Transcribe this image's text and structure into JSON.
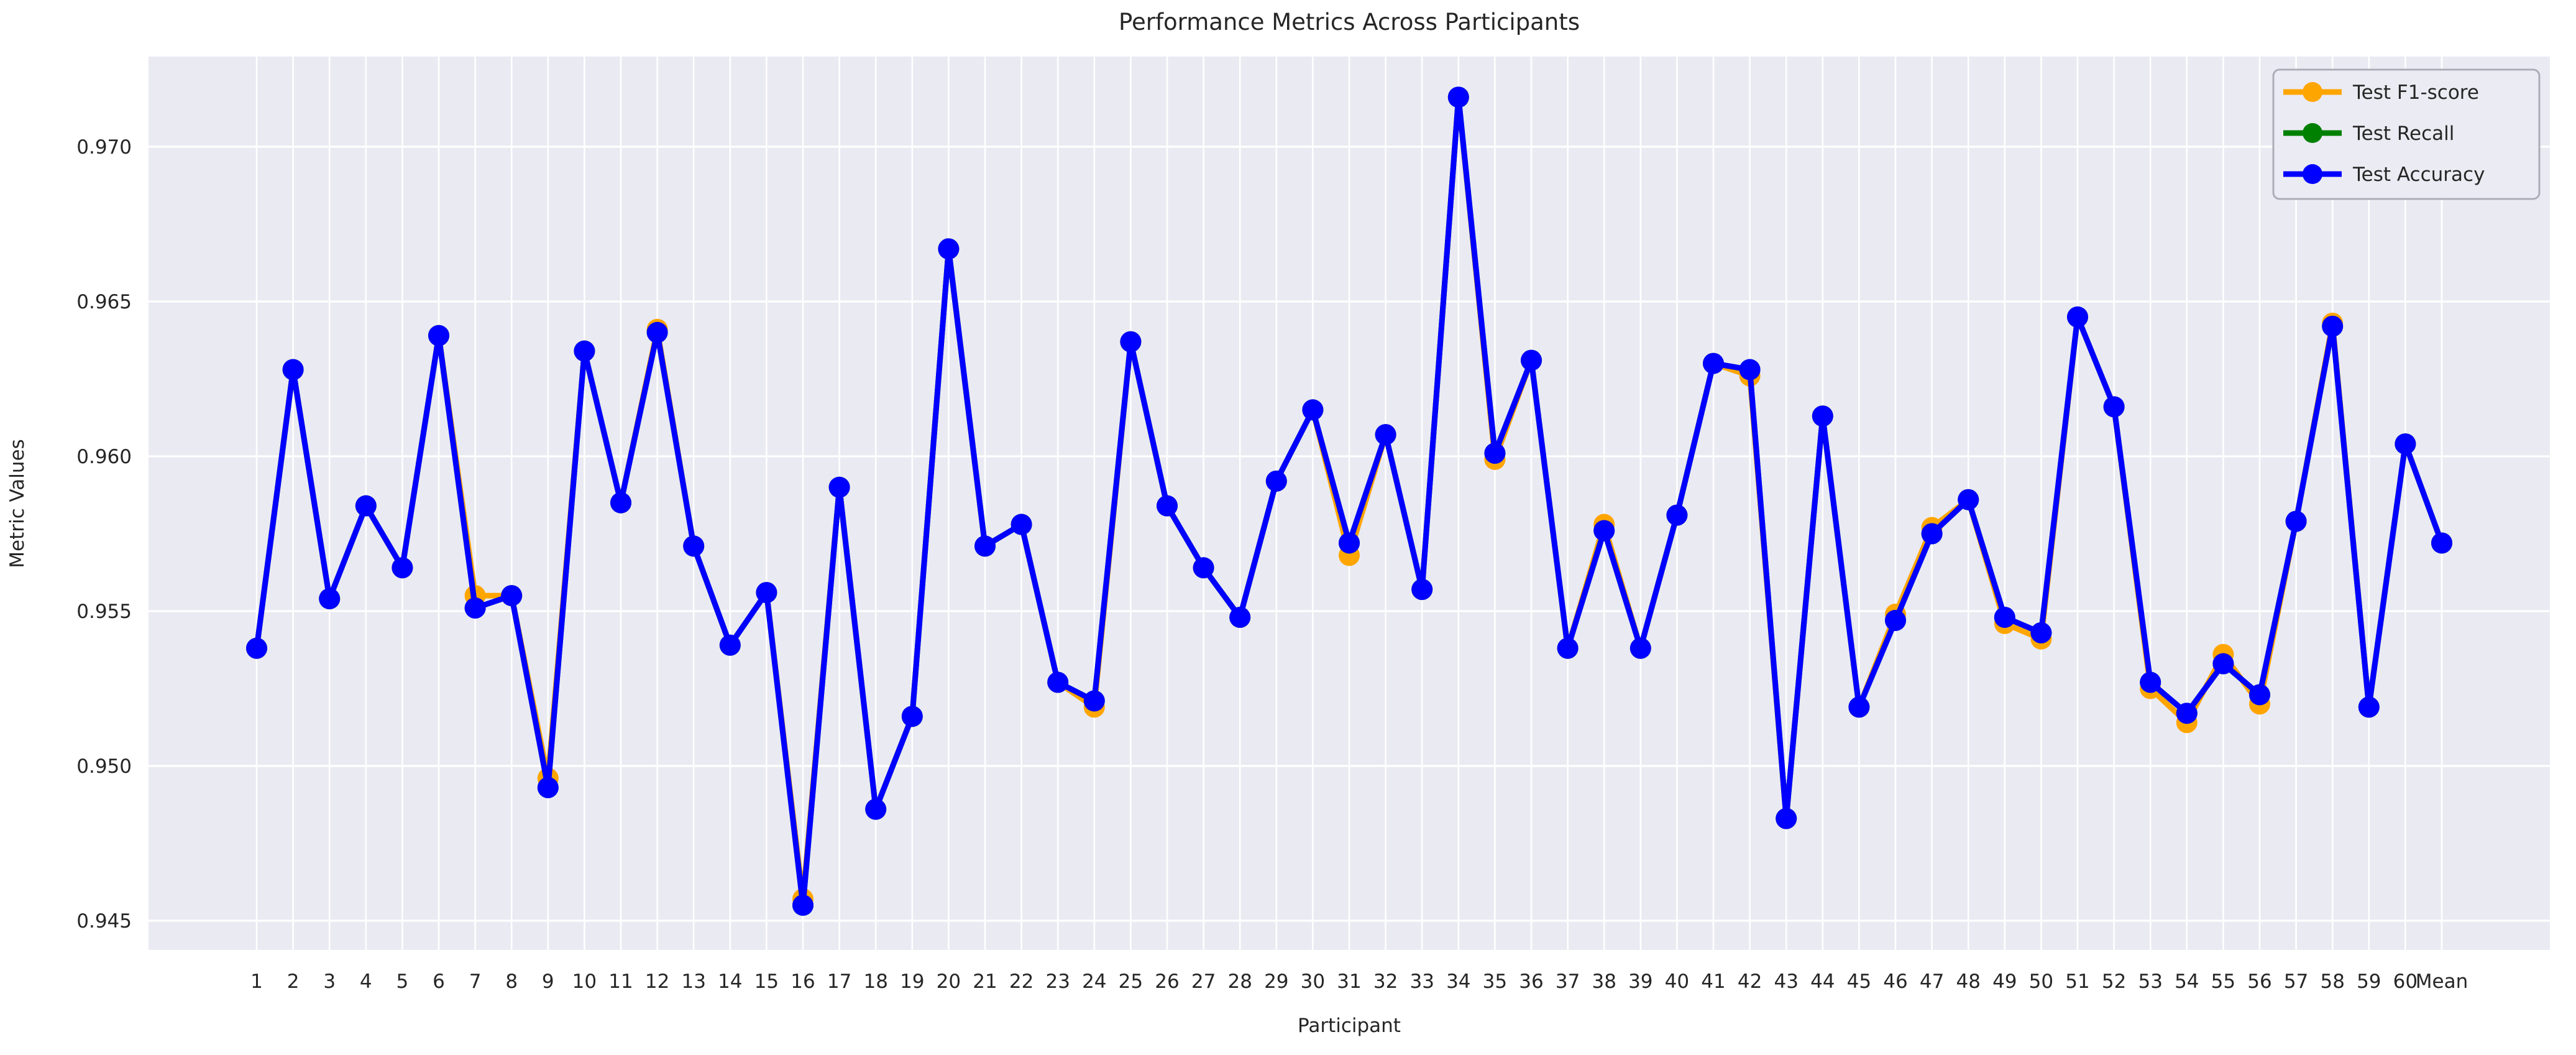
{
  "figure": {
    "title": "Performance Metrics Across Participants",
    "background_color": "#ffffff",
    "plot_background_color": "#eaeaf2",
    "grid_color": "#ffffff",
    "text_color": "#262626",
    "legend_border_color": "#adadb8",
    "legend_fill_color": "#ebebf3"
  },
  "chart_data": {
    "type": "line",
    "title": "Performance Metrics Across Participants",
    "xlabel": "Participant",
    "ylabel": "Metric Values",
    "x_tick_labels": [
      "1",
      "2",
      "3",
      "4",
      "5",
      "6",
      "7",
      "8",
      "9",
      "10",
      "11",
      "12",
      "13",
      "14",
      "15",
      "16",
      "17",
      "18",
      "19",
      "20",
      "21",
      "22",
      "23",
      "24",
      "25",
      "26",
      "27",
      "28",
      "29",
      "30",
      "31",
      "32",
      "33",
      "34",
      "35",
      "36",
      "37",
      "38",
      "39",
      "40",
      "41",
      "42",
      "43",
      "44",
      "45",
      "46",
      "47",
      "48",
      "49",
      "50",
      "51",
      "52",
      "53",
      "54",
      "55",
      "56",
      "57",
      "58",
      "59",
      "60",
      "Mean"
    ],
    "y_ticks": [
      0.945,
      0.95,
      0.955,
      0.96,
      0.965,
      0.97
    ],
    "ylim": [
      0.9441,
      0.9729
    ],
    "grid": true,
    "legend_position": "upper right",
    "series": [
      {
        "name": "Test F1-score",
        "color": "#FFA500",
        "values": [
          0.9538,
          0.9628,
          0.9554,
          0.9584,
          0.9564,
          0.9639,
          0.9555,
          0.9555,
          0.9496,
          0.9634,
          0.9585,
          0.9641,
          0.9571,
          0.9539,
          0.9556,
          0.9457,
          0.959,
          0.9486,
          0.9516,
          0.9667,
          0.9571,
          0.9578,
          0.9527,
          0.9519,
          0.9637,
          0.9584,
          0.9564,
          0.9548,
          0.9592,
          0.9615,
          0.9568,
          0.9607,
          0.9557,
          0.9716,
          0.9599,
          0.9631,
          0.9538,
          0.9578,
          0.9538,
          0.9581,
          0.963,
          0.9626,
          0.9483,
          0.9613,
          0.9519,
          0.9549,
          0.9577,
          0.9586,
          0.9546,
          0.9541,
          0.9645,
          0.9616,
          0.9525,
          0.9514,
          0.9536,
          0.952,
          0.9579,
          0.9643,
          0.9519,
          0.9604,
          0.9572
        ]
      },
      {
        "name": "Test Recall",
        "color": "#008000",
        "values": [
          0.9538,
          0.9628,
          0.9554,
          0.9584,
          0.9564,
          0.9639,
          0.9551,
          0.9555,
          0.9493,
          0.9634,
          0.9585,
          0.964,
          0.9571,
          0.9539,
          0.9556,
          0.9455,
          0.959,
          0.9486,
          0.9516,
          0.9667,
          0.9571,
          0.9578,
          0.9527,
          0.9521,
          0.9637,
          0.9584,
          0.9564,
          0.9548,
          0.9592,
          0.9615,
          0.9572,
          0.9607,
          0.9557,
          0.9716,
          0.9601,
          0.9631,
          0.9538,
          0.9576,
          0.9538,
          0.9581,
          0.963,
          0.9628,
          0.9483,
          0.9613,
          0.9519,
          0.9547,
          0.9575,
          0.9586,
          0.9548,
          0.9543,
          0.9645,
          0.9616,
          0.9527,
          0.9517,
          0.9533,
          0.9523,
          0.9579,
          0.9642,
          0.9519,
          0.9604,
          0.9572
        ]
      },
      {
        "name": "Test Accuracy",
        "color": "#0000FF",
        "values": [
          0.9538,
          0.9628,
          0.9554,
          0.9584,
          0.9564,
          0.9639,
          0.9551,
          0.9555,
          0.9493,
          0.9634,
          0.9585,
          0.964,
          0.9571,
          0.9539,
          0.9556,
          0.9455,
          0.959,
          0.9486,
          0.9516,
          0.9667,
          0.9571,
          0.9578,
          0.9527,
          0.9521,
          0.9637,
          0.9584,
          0.9564,
          0.9548,
          0.9592,
          0.9615,
          0.9572,
          0.9607,
          0.9557,
          0.9716,
          0.9601,
          0.9631,
          0.9538,
          0.9576,
          0.9538,
          0.9581,
          0.963,
          0.9628,
          0.9483,
          0.9613,
          0.9519,
          0.9547,
          0.9575,
          0.9586,
          0.9548,
          0.9543,
          0.9645,
          0.9616,
          0.9527,
          0.9517,
          0.9533,
          0.9523,
          0.9579,
          0.9642,
          0.9519,
          0.9604,
          0.9572
        ]
      }
    ],
    "legend_entries": [
      "Test F1-score",
      "Test Recall",
      "Test Accuracy"
    ]
  }
}
